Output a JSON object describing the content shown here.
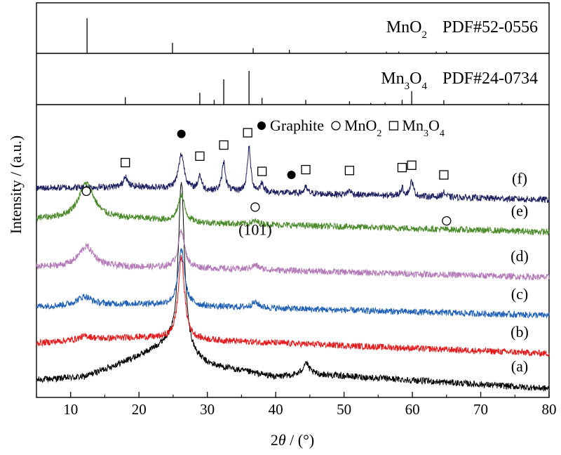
{
  "chart_data": {
    "type": "line",
    "xlabel": "2θ / (°)",
    "xlabel_parts": {
      "pre": "2",
      "theta": "θ",
      "post": " / (°)"
    },
    "ylabel": "Intensity / (a.u.)",
    "xlim": [
      5,
      80
    ],
    "x_ticks": [
      10,
      20,
      30,
      40,
      50,
      60,
      70,
      80
    ],
    "x_minor_step": 5,
    "y_ticks_shown": false,
    "grid": false,
    "reference_panels": [
      {
        "id": "mno2",
        "label": "MnO2",
        "label_parts": [
          [
            "Mn",
            false
          ],
          [
            "O",
            false
          ],
          [
            "2",
            true
          ]
        ],
        "pdf": "PDF#52-0556",
        "peaks": [
          [
            12.4,
            1.0
          ],
          [
            24.9,
            0.3
          ],
          [
            36.7,
            0.15
          ],
          [
            42.0,
            0.1
          ],
          [
            50.3,
            0.05
          ],
          [
            56.2,
            0.05
          ],
          [
            58.0,
            0.05
          ],
          [
            63.5,
            0.05
          ],
          [
            65.0,
            0.06
          ]
        ]
      },
      {
        "id": "mn3o4",
        "label": "Mn3O4",
        "label_parts": [
          [
            "Mn",
            false
          ],
          [
            "3",
            true
          ],
          [
            "O",
            false
          ],
          [
            "4",
            true
          ]
        ],
        "pdf": "PDF#24-0734",
        "peaks": [
          [
            18.0,
            0.22
          ],
          [
            28.9,
            0.35
          ],
          [
            31.0,
            0.14
          ],
          [
            32.4,
            0.75
          ],
          [
            36.1,
            1.0
          ],
          [
            38.0,
            0.2
          ],
          [
            44.4,
            0.14
          ],
          [
            50.8,
            0.1
          ],
          [
            53.9,
            0.05
          ],
          [
            56.0,
            0.06
          ],
          [
            58.5,
            0.14
          ],
          [
            59.9,
            0.4
          ],
          [
            64.6,
            0.13
          ],
          [
            74.1,
            0.05
          ],
          [
            76.0,
            0.05
          ]
        ]
      }
    ],
    "series": [
      {
        "name": "(a)",
        "color": "#000000",
        "baseline": 0.03,
        "background": [
          [
            5,
            0.03
          ],
          [
            12,
            0.04
          ],
          [
            20,
            0.11
          ],
          [
            24,
            0.15
          ],
          [
            30,
            0.08
          ],
          [
            40,
            0.04
          ],
          [
            45,
            0.05
          ],
          [
            80,
            0.0
          ]
        ],
        "peaks": [
          [
            26.2,
            0.58,
            0.55
          ],
          [
            44.4,
            0.04,
            0.5
          ]
        ]
      },
      {
        "name": "(b)",
        "color": "#e31a1c",
        "baseline": 0.185,
        "background": [
          [
            5,
            0.0
          ],
          [
            12,
            0.012
          ],
          [
            20,
            0.02
          ],
          [
            30,
            0.01
          ],
          [
            80,
            -0.035
          ]
        ],
        "peaks": [
          [
            12.2,
            0.012,
            1.2
          ],
          [
            26.2,
            0.28,
            0.55
          ]
        ]
      },
      {
        "name": "(c)",
        "color": "#1f5fb4",
        "baseline": 0.31,
        "background": [
          [
            5,
            0.0
          ],
          [
            20,
            0.01
          ],
          [
            30,
            0.0
          ],
          [
            80,
            -0.03
          ]
        ],
        "peaks": [
          [
            12.0,
            0.03,
            1.3
          ],
          [
            26.2,
            0.19,
            0.55
          ],
          [
            37.0,
            0.018,
            0.7
          ]
        ]
      },
      {
        "name": "(d)",
        "color": "#b37ab8",
        "baseline": 0.445,
        "background": [
          [
            5,
            0.0
          ],
          [
            20,
            0.0
          ],
          [
            30,
            -0.005
          ],
          [
            80,
            -0.035
          ]
        ],
        "peaks": [
          [
            12.3,
            0.07,
            1.4
          ],
          [
            26.2,
            0.13,
            0.55
          ],
          [
            37.0,
            0.015,
            0.7
          ]
        ]
      },
      {
        "name": "(e)",
        "color": "#4a8a2a",
        "baseline": 0.61,
        "background": [
          [
            5,
            0.0
          ],
          [
            20,
            0.0
          ],
          [
            30,
            -0.015
          ],
          [
            80,
            -0.045
          ]
        ],
        "peaks": [
          [
            12.3,
            0.12,
            1.4
          ],
          [
            26.2,
            0.09,
            0.55
          ],
          [
            37.0,
            0.01,
            0.7
          ]
        ]
      },
      {
        "name": "(f)",
        "color": "#1b1d5e",
        "baseline": 0.715,
        "background": [
          [
            5,
            0.0
          ],
          [
            20,
            0.005
          ],
          [
            30,
            -0.01
          ],
          [
            80,
            -0.04
          ]
        ],
        "peaks": [
          [
            18.0,
            0.04,
            0.3
          ],
          [
            26.2,
            0.12,
            0.5
          ],
          [
            28.9,
            0.05,
            0.3
          ],
          [
            32.4,
            0.1,
            0.3
          ],
          [
            36.1,
            0.15,
            0.3
          ],
          [
            38.0,
            0.03,
            0.3
          ],
          [
            44.4,
            0.02,
            0.3
          ],
          [
            50.8,
            0.015,
            0.3
          ],
          [
            58.5,
            0.025,
            0.3
          ],
          [
            59.9,
            0.05,
            0.3
          ],
          [
            64.6,
            0.015,
            0.3
          ]
        ]
      }
    ],
    "markers": [
      {
        "kind": "square",
        "x": 18.0,
        "y": 0.802
      },
      {
        "kind": "filled-circle",
        "x": 26.2,
        "y": 0.9
      },
      {
        "kind": "square",
        "x": 28.9,
        "y": 0.824
      },
      {
        "kind": "square",
        "x": 32.4,
        "y": 0.862
      },
      {
        "kind": "square",
        "x": 35.9,
        "y": 0.904
      },
      {
        "kind": "square",
        "x": 38.0,
        "y": 0.772
      },
      {
        "kind": "filled-circle",
        "x": 42.3,
        "y": 0.76
      },
      {
        "kind": "square",
        "x": 44.4,
        "y": 0.778
      },
      {
        "kind": "square",
        "x": 50.8,
        "y": 0.775
      },
      {
        "kind": "square",
        "x": 58.5,
        "y": 0.785
      },
      {
        "kind": "square",
        "x": 59.9,
        "y": 0.793
      },
      {
        "kind": "square",
        "x": 64.6,
        "y": 0.76
      },
      {
        "kind": "open-circle",
        "x": 12.3,
        "y": 0.704
      },
      {
        "kind": "open-circle",
        "x": 37.0,
        "y": 0.65
      },
      {
        "kind": "open-circle",
        "x": 65.0,
        "y": 0.603
      }
    ],
    "annotations": [
      {
        "text": "(101)",
        "x": 37.0,
        "y": 0.555
      }
    ],
    "legend": {
      "position": "top-right",
      "entries": [
        {
          "kind": "filled-circle",
          "label": "Graphite",
          "label_parts": [
            [
              "Graphite",
              false
            ]
          ]
        },
        {
          "kind": "open-circle",
          "label": "MnO2",
          "label_parts": [
            [
              "Mn",
              false
            ],
            [
              "O",
              false
            ],
            [
              "2",
              true
            ]
          ]
        },
        {
          "kind": "square",
          "label": "Mn3O4",
          "label_parts": [
            [
              "Mn",
              false
            ],
            [
              "3",
              true
            ],
            [
              "O",
              false
            ],
            [
              "4",
              true
            ]
          ]
        }
      ]
    }
  }
}
